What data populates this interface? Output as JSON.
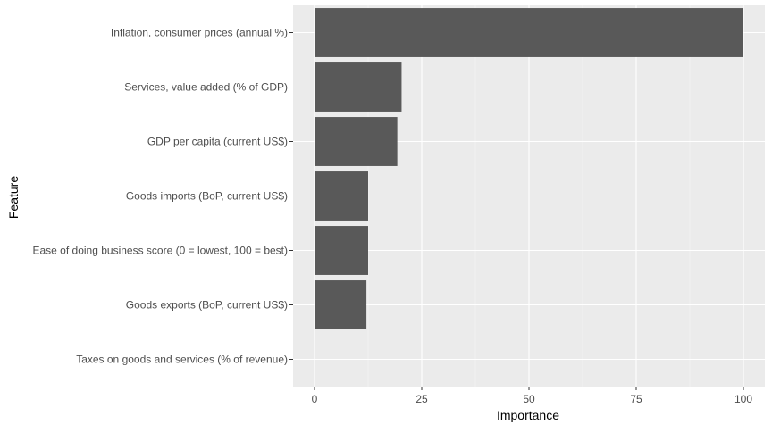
{
  "chart_data": {
    "type": "bar",
    "orientation": "horizontal",
    "xlabel": "Importance",
    "ylabel": "Feature",
    "xlim": [
      -5,
      105
    ],
    "xticks": [
      0,
      25,
      50,
      75,
      100
    ],
    "grid": true,
    "categories": [
      "Inflation, consumer prices (annual %)",
      "Services, value added (% of GDP)",
      "GDP per capita (current US$)",
      "Goods imports (BoP, current US$)",
      "Ease of doing business score (0 = lowest, 100 = best)",
      "Goods exports (BoP, current US$)",
      "Taxes on goods and services (% of revenue)"
    ],
    "values": [
      100,
      20.3,
      19.3,
      12.5,
      12.5,
      12.1,
      0
    ],
    "colors": {
      "panel": "#EBEBEB",
      "grid_major": "#FFFFFF",
      "grid_minor": "#F5F5F5",
      "bar": "#595959",
      "tick_text": "#4D4D4D",
      "axis_title": "#000000"
    }
  }
}
